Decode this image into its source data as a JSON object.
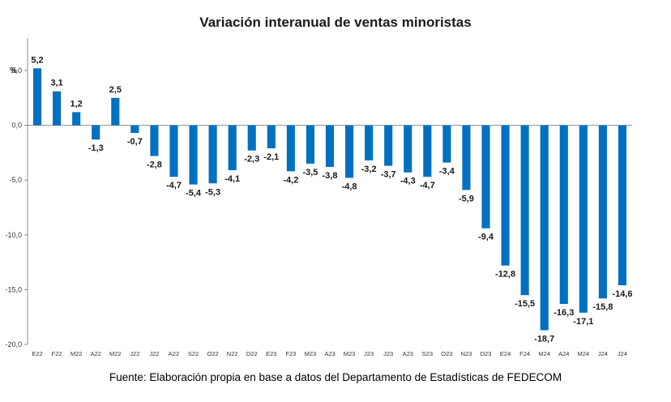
{
  "chart_data": {
    "type": "bar",
    "title": "Variación interanual de ventas minoristas",
    "ylabel": "%",
    "ylim": [
      -20,
      5
    ],
    "yticks": [
      5,
      0,
      -5,
      -10,
      -15,
      -20
    ],
    "ytick_labels": [
      "5,0",
      "0,0",
      "-5,0",
      "-10,0",
      "-15,0",
      "-20,0"
    ],
    "categories": [
      "E22",
      "F22",
      "M22",
      "A22",
      "M22",
      "J22",
      "J22",
      "A22",
      "S22",
      "O22",
      "N22",
      "D22",
      "E23",
      "F23",
      "M23",
      "A23",
      "M23",
      "J23",
      "J23",
      "A23",
      "S23",
      "O23",
      "N23",
      "D23",
      "E24",
      "F24",
      "M24",
      "A24",
      "M24",
      "J24",
      "J24"
    ],
    "values": [
      5.2,
      3.1,
      1.2,
      -1.3,
      2.5,
      -0.7,
      -2.8,
      -4.7,
      -5.4,
      -5.3,
      -4.1,
      -2.3,
      -2.1,
      -4.2,
      -3.5,
      -3.8,
      -4.8,
      -3.2,
      -3.7,
      -4.3,
      -4.7,
      -3.4,
      -5.9,
      -9.4,
      -12.8,
      -15.5,
      -18.7,
      -16.3,
      -17.1,
      -15.8,
      -14.6
    ],
    "data_labels": [
      "5,2",
      "3,1",
      "1,2",
      "-1,3",
      "2,5",
      "-0,7",
      "-2,8",
      "-4,7",
      "-5,4",
      "-5,3",
      "-4,1",
      "-2,3",
      "-2,1",
      "-4,2",
      "-3,5",
      "-3,8",
      "-4,8",
      "-3,2",
      "-3,7",
      "-4,3",
      "-4,7",
      "-3,4",
      "-5,9",
      "-9,4",
      "-12,8",
      "-15,5",
      "-18,7",
      "-16,3",
      "-17,1",
      "-15,8",
      "-14,6"
    ],
    "bar_color": "#0070C0",
    "grid": false,
    "legend": "none"
  },
  "source": "Fuente: Elaboración propia en base a datos del Departamento de Estadísticas de FEDECOM"
}
